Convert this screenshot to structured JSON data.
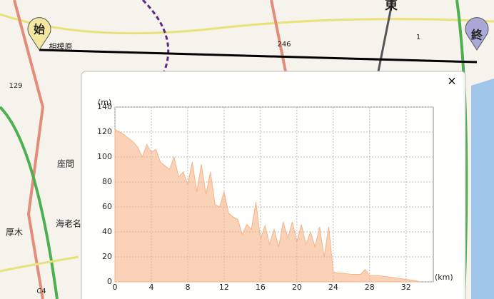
{
  "map": {
    "labels": [
      "始",
      "終",
      "相模原",
      "座間",
      "海老名",
      "厚木",
      "246",
      "129",
      "1",
      "C4",
      "東"
    ],
    "close": "×"
  },
  "chart_data": {
    "type": "area",
    "x": [
      0,
      0.5,
      1,
      1.5,
      2,
      2.5,
      3,
      3.5,
      4,
      4.5,
      5,
      5.5,
      6,
      6.5,
      7,
      7.5,
      8,
      8.5,
      9,
      9.5,
      10,
      10.5,
      11,
      11.5,
      12,
      12.5,
      13,
      13.5,
      14,
      14.5,
      15,
      15.5,
      16,
      16.5,
      17,
      17.5,
      18,
      18.5,
      19,
      19.5,
      20,
      20.5,
      21,
      21.5,
      22,
      22.5,
      23,
      23.5,
      24,
      24.5,
      25,
      26,
      27,
      27.5,
      28,
      29,
      30,
      31,
      32,
      33,
      33.5
    ],
    "values": [
      122,
      120,
      118,
      115,
      112,
      108,
      100,
      110,
      104,
      106,
      96,
      93,
      90,
      100,
      84,
      88,
      78,
      96,
      72,
      94,
      70,
      88,
      62,
      60,
      72,
      55,
      52,
      50,
      38,
      46,
      42,
      64,
      34,
      45,
      30,
      42,
      28,
      48,
      35,
      48,
      32,
      46,
      30,
      40,
      28,
      44,
      20,
      44,
      8,
      7,
      7,
      6,
      6,
      10,
      5,
      5,
      4,
      3,
      2,
      1,
      0
    ],
    "color": "#f5b488",
    "xlim": [
      0,
      35
    ],
    "ylim": [
      0,
      140
    ],
    "xticks": [
      0,
      4,
      8,
      12,
      16,
      20,
      24,
      28,
      32
    ],
    "yticks": [
      0,
      20,
      40,
      60,
      80,
      100,
      120,
      140
    ],
    "xlabel": "(km)",
    "ylabel": "(m)",
    "grid": true
  }
}
